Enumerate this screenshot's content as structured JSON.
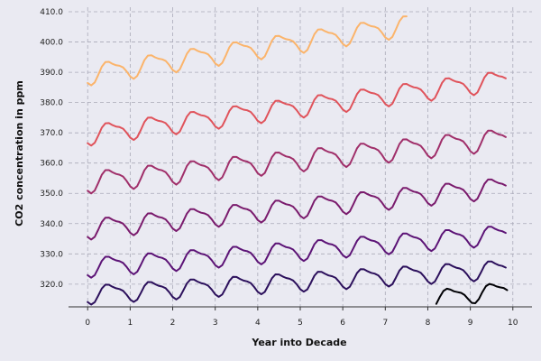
{
  "chart_data": {
    "type": "line",
    "title": "",
    "xlabel": "Year into Decade",
    "ylabel": "CO2 concentration in ppm",
    "xlim": [
      -0.45,
      10.45
    ],
    "ylim": [
      312.5,
      411.5
    ],
    "xticks": [
      0,
      1,
      2,
      3,
      4,
      5,
      6,
      7,
      8,
      9,
      10
    ],
    "xtick_labels": [
      "0",
      "1",
      "2",
      "3",
      "4",
      "5",
      "6",
      "7",
      "8",
      "9",
      "10"
    ],
    "yticks": [
      320,
      330,
      340,
      350,
      360,
      370,
      380,
      390,
      400,
      410
    ],
    "ytick_labels": [
      "320.0",
      "330.0",
      "340.0",
      "350.0",
      "360.0",
      "370.0",
      "380.0",
      "390.0",
      "400.0",
      "410.0"
    ],
    "grid": true,
    "legend": "none",
    "series": [
      {
        "color": "#000004",
        "start": 8.2,
        "end": 9.9,
        "base": 315.5,
        "slope": 1.6,
        "amp": 2.6
      },
      {
        "color": "#2c105c",
        "start": 0.0,
        "end": 9.9,
        "base": 316.8,
        "slope": 0.85,
        "amp": 2.8
      },
      {
        "color": "#5c1376",
        "start": 0.0,
        "end": 9.9,
        "base": 325.8,
        "slope": 1.1,
        "amp": 2.9
      },
      {
        "color": "#7a1b6d",
        "start": 0.0,
        "end": 9.9,
        "base": 338.5,
        "slope": 1.4,
        "amp": 3.0
      },
      {
        "color": "#a02f6a",
        "start": 0.0,
        "end": 9.9,
        "base": 354.0,
        "slope": 1.45,
        "amp": 3.2
      },
      {
        "color": "#e0535b",
        "start": 0.0,
        "end": 9.9,
        "base": 369.5,
        "slope": 1.85,
        "amp": 3.0
      },
      {
        "color": "#fbb46b",
        "start": 0.0,
        "end": 7.5,
        "base": 389.5,
        "slope": 2.15,
        "amp": 3.1
      }
    ]
  }
}
